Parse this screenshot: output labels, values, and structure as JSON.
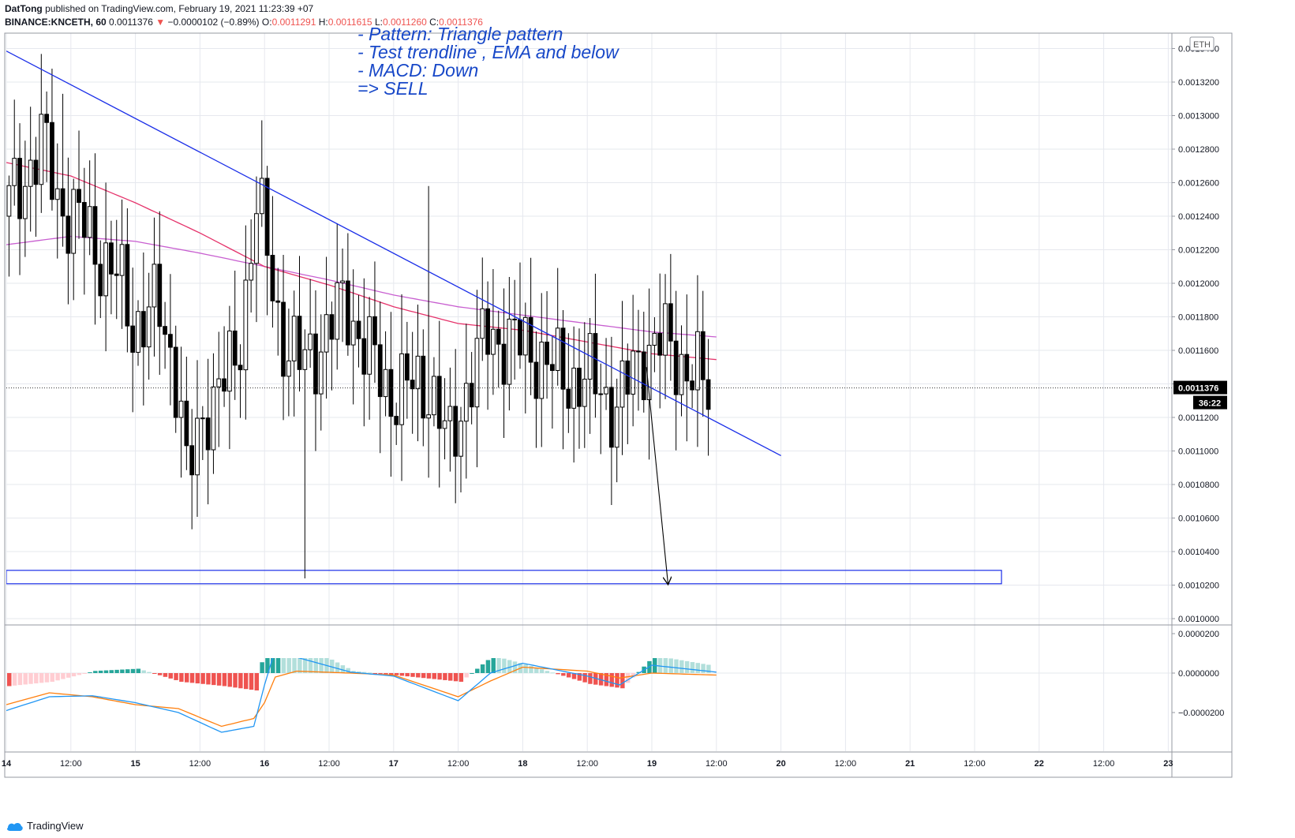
{
  "header": {
    "author": "DatTong",
    "published_text": "published on TradingView.com, February 19, 2021 11:23:39 +07",
    "symbol": "BINANCE:KNCETH, 60",
    "last": "0.0011376",
    "change_arrow": "▼",
    "change": "−0.0000102 (−0.89%)",
    "o_label": "O:",
    "o_value": "0.0011291",
    "h_label": "H:",
    "h_value": "0.0011615",
    "l_label": "L:",
    "l_value": "0.0011260",
    "c_label": "C:",
    "c_value": "0.0011376"
  },
  "annotation": {
    "lines": [
      "- Pattern: Triangle pattern",
      "- Test trendline , EMA and below",
      "- MACD: Down",
      "=> SELL"
    ],
    "color": "#1848c8"
  },
  "price_axis": {
    "currency_label": "ETH",
    "current_price_label": "0.0011376",
    "countdown_label": "36:22"
  },
  "footer": {
    "brand": "TradingView"
  },
  "colors": {
    "up_body": "#ffffff",
    "down_body": "#000000",
    "candle_outline": "#000000",
    "ema_fast": "#e5336b",
    "ema_slow": "#c85fd0",
    "trendline": "#1a2ee8",
    "support_zone": "#1a2ee8",
    "macd_line": "#2196f3",
    "signal_line": "#ff7f0e",
    "hist_pos_strong": "#26a69a",
    "hist_pos_weak": "#b2dfdb",
    "hist_neg_strong": "#ef5350",
    "hist_neg_weak": "#ffcdd2",
    "annotation_text": "#1848c8",
    "grid": "#e6e8ee"
  },
  "chart_data": [
    {
      "type": "candlestick",
      "title": "BINANCE:KNCETH, 60",
      "time_axis": {
        "tick_labels": [
          "14",
          "12:00",
          "15",
          "12:00",
          "16",
          "12:00",
          "17",
          "12:00",
          "18",
          "12:00",
          "19",
          "12:00",
          "20",
          "12:00",
          "21",
          "12:00",
          "22",
          "12:00",
          "23"
        ],
        "start": "Feb 14 00:00",
        "end": "Feb 23 00:00",
        "bar_interval_minutes": 60
      },
      "y_axis": {
        "tick_labels": [
          "0.0013400",
          "0.0013200",
          "0.0013000",
          "0.0012800",
          "0.0012600",
          "0.0012400",
          "0.0012200",
          "0.0012000",
          "0.0011800",
          "0.0011600",
          "0.0011400",
          "0.0011200",
          "0.0011000",
          "0.0010800",
          "0.0010600",
          "0.0010400",
          "0.0010200",
          "0.0010000"
        ],
        "ylim": [
          0.00099,
          0.00135
        ]
      },
      "current_price": 0.0011376,
      "support_zone": {
        "low": 0.0010208,
        "high": 0.0010288,
        "from": "Feb 14 00:00",
        "to": "Feb 21 17:00"
      },
      "trendline": {
        "from": [
          "Feb 14 00:00",
          0.0013385
        ],
        "to": [
          "Feb 20 00:00",
          0.0010972
        ]
      },
      "projection_arrow": {
        "from": [
          "Feb 18 23:00",
          0.00115
        ],
        "to": [
          "Feb 19 03:00",
          0.0010208
        ]
      },
      "key_levels": {
        "high": 0.001313,
        "low": 0.001024
      },
      "ema_fast": [
        [
          "Feb 14 00:00",
          0.001272
        ],
        [
          "Feb 14 12:00",
          0.001264
        ],
        [
          "Feb 15 00:00",
          0.001248
        ],
        [
          "Feb 15 12:00",
          0.00123
        ],
        [
          "Feb 16 00:00",
          0.00121
        ],
        [
          "Feb 16 12:00",
          0.001199
        ],
        [
          "Feb 17 00:00",
          0.001186
        ],
        [
          "Feb 17 12:00",
          0.001176
        ],
        [
          "Feb 18 00:00",
          0.001172
        ],
        [
          "Feb 18 12:00",
          0.001165
        ],
        [
          "Feb 19 00:00",
          0.001158
        ],
        [
          "Feb 19 12:00",
          0.0011545
        ]
      ],
      "ema_slow": [
        [
          "Feb 14 00:00",
          0.001223
        ],
        [
          "Feb 14 12:00",
          0.001228
        ],
        [
          "Feb 15 00:00",
          0.001225
        ],
        [
          "Feb 15 12:00",
          0.001218
        ],
        [
          "Feb 16 00:00",
          0.00121
        ],
        [
          "Feb 16 12:00",
          0.001202
        ],
        [
          "Feb 17 00:00",
          0.001193
        ],
        [
          "Feb 17 12:00",
          0.001186
        ],
        [
          "Feb 18 00:00",
          0.001181
        ],
        [
          "Feb 18 12:00",
          0.001176
        ],
        [
          "Feb 19 00:00",
          0.001171
        ],
        [
          "Feb 19 12:00",
          0.001168
        ]
      ],
      "ohlc_mode": "generated_from_trend"
    },
    {
      "type": "histogram+line",
      "title": "MACD",
      "y_axis": {
        "tick_labels": [
          "0.0000200",
          "0.0000000",
          "−0.0000200"
        ],
        "ylim": [
          -4e-05,
          2.5e-05
        ]
      },
      "macd_line": [
        [
          "Feb 14 00:00",
          -1.9e-05
        ],
        [
          "Feb 14 08:00",
          -1.2e-05
        ],
        [
          "Feb 14 16:00",
          -1.15e-05
        ],
        [
          "Feb 15 00:00",
          -1.5e-05
        ],
        [
          "Feb 15 08:00",
          -2e-05
        ],
        [
          "Feb 15 16:00",
          -3e-05
        ],
        [
          "Feb 15 22:00",
          -2.7e-05
        ],
        [
          "Feb 16 00:00",
          -6e-06
        ],
        [
          "Feb 16 02:00",
          1.2e-05
        ],
        [
          "Feb 16 06:00",
          8e-06
        ],
        [
          "Feb 16 16:00",
          5e-07
        ],
        [
          "Feb 17 00:00",
          -1.5e-06
        ],
        [
          "Feb 17 12:00",
          -1.4e-05
        ],
        [
          "Feb 17 18:00",
          0.0
        ],
        [
          "Feb 18 00:00",
          5e-06
        ],
        [
          "Feb 18 12:00",
          -1.5e-06
        ],
        [
          "Feb 18 18:00",
          -6e-06
        ],
        [
          "Feb 19 00:00",
          4e-06
        ],
        [
          "Feb 19 12:00",
          5e-07
        ]
      ],
      "signal_line": [
        [
          "Feb 14 00:00",
          -1.6e-05
        ],
        [
          "Feb 14 08:00",
          -1e-05
        ],
        [
          "Feb 14 16:00",
          -1.2e-05
        ],
        [
          "Feb 15 00:00",
          -1.6e-05
        ],
        [
          "Feb 15 08:00",
          -1.8e-05
        ],
        [
          "Feb 15 16:00",
          -2.7e-05
        ],
        [
          "Feb 15 22:00",
          -2.3e-05
        ],
        [
          "Feb 16 00:00",
          -1.5e-05
        ],
        [
          "Feb 16 02:00",
          -2e-06
        ],
        [
          "Feb 16 06:00",
          1e-06
        ],
        [
          "Feb 16 16:00",
          0.0
        ],
        [
          "Feb 17 00:00",
          -1e-06
        ],
        [
          "Feb 17 12:00",
          -1.2e-05
        ],
        [
          "Feb 17 18:00",
          -4e-06
        ],
        [
          "Feb 18 00:00",
          3e-06
        ],
        [
          "Feb 18 12:00",
          1e-06
        ],
        [
          "Feb 18 18:00",
          -2.5e-06
        ],
        [
          "Feb 19 00:00",
          0.0
        ],
        [
          "Feb 19 12:00",
          -1e-06
        ]
      ]
    }
  ]
}
